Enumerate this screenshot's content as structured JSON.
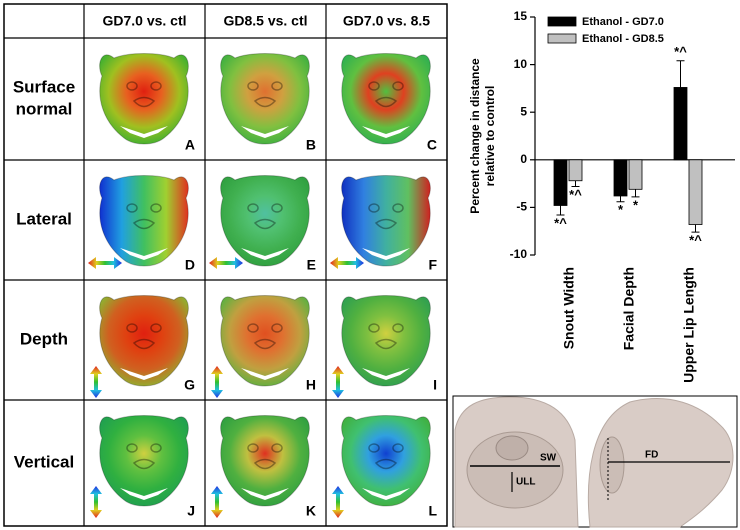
{
  "figure": {
    "columns": [
      "GD7.0 vs. ctl",
      "GD8.5 vs. ctl",
      "GD7.0 vs. 8.5"
    ],
    "rows": [
      [
        "Surface",
        "normal"
      ],
      [
        "Lateral"
      ],
      [
        "Depth"
      ],
      [
        "Vertical"
      ]
    ],
    "panels": [
      [
        "A",
        "B",
        "C"
      ],
      [
        "D",
        "E",
        "F"
      ],
      [
        "G",
        "H",
        "I"
      ],
      [
        "J",
        "K",
        "L"
      ]
    ]
  },
  "chart_data": {
    "type": "bar",
    "ylabel": [
      "Percent change in distance",
      "relative to control"
    ],
    "categories": [
      "Snout Width",
      "Facial Depth",
      "Upper Lip Length"
    ],
    "series": [
      {
        "name": "Ethanol - GD7.0",
        "color": "#000000",
        "values": [
          -4.8,
          -3.8,
          7.6
        ],
        "errors": [
          1.0,
          0.6,
          2.8
        ],
        "significance": [
          "*^",
          "*",
          "*^"
        ]
      },
      {
        "name": "Ethanol - GD8.5",
        "color": "#c0c0c0",
        "values": [
          -2.2,
          -3.1,
          -6.8
        ],
        "errors": [
          0.6,
          0.8,
          0.8
        ],
        "significance": [
          "*^",
          "*",
          "*^"
        ]
      }
    ],
    "ylim": [
      -10,
      15
    ],
    "yticks": [
      -10,
      -5,
      0,
      5,
      10,
      15
    ],
    "legend": "top"
  },
  "measurements": {
    "sw": "SW",
    "ull": "ULL",
    "fd": "FD"
  }
}
